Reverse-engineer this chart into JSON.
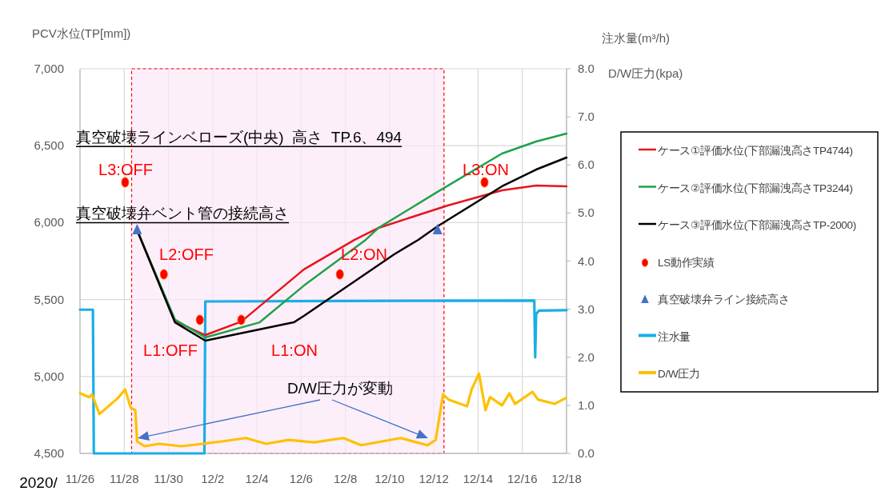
{
  "chart_data": {
    "type": "line",
    "ylabel": "PCV水位(TP[mm])",
    "y2label": "注水量(m³/h)\nD/W圧力(kpa)",
    "xlim": [
      "2020-11-26",
      "2020-12-18"
    ],
    "xticks": [
      {
        "value": "2020-11-26",
        "label": "11/26"
      },
      {
        "value": "2020-11-28",
        "label": "11/28"
      },
      {
        "value": "2020-11-30",
        "label": "11/30"
      },
      {
        "value": "2020-12-02",
        "label": "12/2"
      },
      {
        "value": "2020-12-04",
        "label": "12/4"
      },
      {
        "value": "2020-12-06",
        "label": "12/6"
      },
      {
        "value": "2020-12-08",
        "label": "12/8"
      },
      {
        "value": "2020-12-10",
        "label": "12/10"
      },
      {
        "value": "2020-12-12",
        "label": "12/12"
      },
      {
        "value": "2020-12-14",
        "label": "12/14"
      },
      {
        "value": "2020-12-16",
        "label": "12/16"
      },
      {
        "value": "2020-12-18",
        "label": "12/18"
      }
    ],
    "ylim": [
      4500,
      7000
    ],
    "yticks": [
      {
        "value": 4500,
        "label": "4,500"
      },
      {
        "value": 5000,
        "label": "5,000"
      },
      {
        "value": 5500,
        "label": "5,500"
      },
      {
        "value": 6000,
        "label": "6,000"
      },
      {
        "value": 6500,
        "label": "6,500"
      },
      {
        "value": 7000,
        "label": "7,000"
      }
    ],
    "y2lim": [
      0,
      8
    ],
    "y2ticks": [
      {
        "value": 0,
        "label": "0.0"
      },
      {
        "value": 1,
        "label": "1.0"
      },
      {
        "value": 2,
        "label": "2.0"
      },
      {
        "value": 3,
        "label": "3.0"
      },
      {
        "value": 4,
        "label": "4.0"
      },
      {
        "value": 5,
        "label": "5.0"
      },
      {
        "value": 6,
        "label": "6.0"
      },
      {
        "value": 7,
        "label": "7.0"
      },
      {
        "value": 8,
        "label": "8.0"
      }
    ],
    "grid": true,
    "legend": "right",
    "series": [
      {
        "name": "ケース①評価水位(下部漏洩高さTP4744)",
        "color": "#e8141c",
        "x": [
          "2020-11-28T14:00",
          "2020-11-30T07:00",
          "2020-12-01T16:00",
          "2020-12-03T07:00",
          "2020-12-06T03:00",
          "2020-12-08T10:00",
          "2020-12-09T12:00",
          "2020-12-12T15:00",
          "2020-12-15T02:00",
          "2020-12-16T15:00",
          "2020-12-18"
        ],
        "values": [
          5950,
          5360,
          5269,
          5357,
          5696,
          5888,
          5966,
          6111,
          6210,
          6241,
          6236
        ]
      },
      {
        "name": "ケース②評価水位(下部漏洩高さTP3244)",
        "color": "#1fa24a",
        "x": [
          "2020-11-28T14:00",
          "2020-11-30T07:00",
          "2020-12-01T16:00",
          "2020-12-04T03:00",
          "2020-12-06T03:00",
          "2020-12-08T22:00",
          "2020-12-09T12:00",
          "2020-12-12T04:00",
          "2020-12-15T02:00",
          "2020-12-16T15:00",
          "2020-12-18"
        ],
        "values": [
          5950,
          5370,
          5254,
          5352,
          5591,
          5888,
          5966,
          6200,
          6449,
          6527,
          6579
        ]
      },
      {
        "name": "ケース③評価水位(下部漏洩高さTP-2000)",
        "color": "#000000",
        "x": [
          "2020-11-28T14:00",
          "2020-11-30T07:00",
          "2020-12-01T16:00",
          "2020-12-05T16:00",
          "2020-12-06T03:00",
          "2020-12-10T05:00",
          "2020-12-11T07:00",
          "2020-12-12T04:00",
          "2020-12-15T02:00",
          "2020-12-16T15:00",
          "2020-12-18"
        ],
        "values": [
          5950,
          5352,
          5233,
          5352,
          5394,
          5794,
          5888,
          5976,
          6236,
          6345,
          6423
        ]
      },
      {
        "name": "LS動作実績",
        "type": "scatter",
        "marker": "circle",
        "color": "#ff0000",
        "x": [
          "2020-11-28T01:00",
          "2020-11-29T19:00",
          "2020-12-01T10:00",
          "2020-12-03T07:00",
          "2020-12-07T18:00",
          "2020-12-14T07:00"
        ],
        "values": [
          6262,
          5664,
          5368,
          5368,
          5664,
          6262
        ]
      },
      {
        "name": "真空破壊弁ライン接続高さ",
        "type": "scatter",
        "marker": "triangle",
        "color": "#4472c4",
        "x": [
          "2020-11-28T14:00",
          "2020-12-12T04:00"
        ],
        "values": [
          5950,
          5950
        ]
      },
      {
        "name": "注水量",
        "axis": "y2",
        "color": "#1aaee6",
        "x": [
          "2020-11-26",
          "2020-11-26T14:00",
          "2020-11-26T15:00",
          "2020-12-01T15:00",
          "2020-12-01T16:00",
          "2020-12-08",
          "2020-12-16T13:00",
          "2020-12-16T14:00",
          "2020-12-16T15:00",
          "2020-12-16T18:00",
          "2020-12-18"
        ],
        "values": [
          2.99,
          2.99,
          0.0,
          0.0,
          3.16,
          3.17,
          3.18,
          2.0,
          2.9,
          2.97,
          2.98
        ]
      },
      {
        "name": "D/W圧力",
        "axis": "y2",
        "color": "#ffc000",
        "x": [
          "2020-11-26",
          "2020-11-26T10:00",
          "2020-11-26T13:00",
          "2020-11-26T21:00",
          "2020-11-27T05:00",
          "2020-11-27T17:00",
          "2020-11-28T01:00",
          "2020-11-28T07:00",
          "2020-11-28T12:00",
          "2020-11-28T14:00",
          "2020-11-28T22:00",
          "2020-11-29T14:00",
          "2020-11-30T14:00",
          "2020-12-01T13:00",
          "2020-12-02T10:00",
          "2020-12-03T12:00",
          "2020-12-04T10:00",
          "2020-12-05T10:00",
          "2020-12-06T14:00",
          "2020-12-07T22:00",
          "2020-12-08T17:00",
          "2020-12-10T12:00",
          "2020-12-11T17:00",
          "2020-12-12T02:00",
          "2020-12-12T10:00",
          "2020-12-12T16:00",
          "2020-12-13T12:00",
          "2020-12-13T17:00",
          "2020-12-14T01:00",
          "2020-12-14T08:00",
          "2020-12-14T13:00",
          "2020-12-15T02:00",
          "2020-12-15T10:00",
          "2020-12-15T16:00",
          "2020-12-16T11:00",
          "2020-12-16T17:00",
          "2020-12-17T11:00",
          "2020-12-17T23:00"
        ],
        "values": [
          1.25,
          1.17,
          1.23,
          0.82,
          0.95,
          1.15,
          1.33,
          0.95,
          0.9,
          0.25,
          0.15,
          0.2,
          0.15,
          0.2,
          0.25,
          0.32,
          0.2,
          0.28,
          0.23,
          0.32,
          0.17,
          0.32,
          0.17,
          0.28,
          1.23,
          1.12,
          0.98,
          1.33,
          1.66,
          0.9,
          1.17,
          1.0,
          1.25,
          1.03,
          1.28,
          1.12,
          1.03,
          1.15
        ]
      }
    ],
    "ref_lines": [
      {
        "axis": "y",
        "value": 6494,
        "label": "真空破壊ラインベローズ(中央)  高さ  TP.6、494"
      },
      {
        "axis": "y",
        "value": 6000,
        "label": "真空破壊弁ベント管の接続高さ"
      }
    ],
    "bands": [
      {
        "axis": "x",
        "from": "2020-11-28T08:00",
        "to": "2020-12-12T11:00",
        "color": "#fce8f6"
      }
    ],
    "annotations": [
      "2020/",
      "D/W圧力が変動",
      "L3:OFF",
      "L2:OFF",
      "L1:OFF",
      "L1:ON",
      "L2:ON",
      "L3:ON"
    ]
  }
}
